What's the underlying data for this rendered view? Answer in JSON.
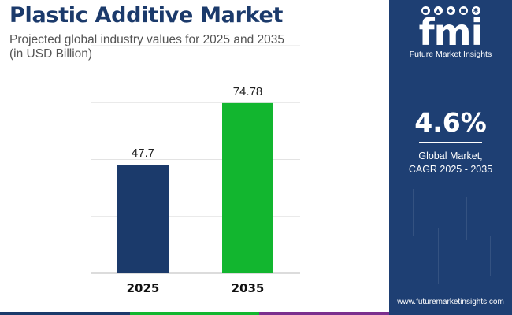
{
  "header": {
    "title": "Plastic Additive Market",
    "subtitle_line1": "Projected global industry values for 2025 and 2035",
    "subtitle_line2": "(in USD Billion)"
  },
  "chart_data": {
    "type": "bar",
    "categories": [
      "2025",
      "2035"
    ],
    "values": [
      47.7,
      74.78
    ],
    "value_labels": [
      "47.7",
      "74.78"
    ],
    "bar_colors": [
      "#1b3a6b",
      "#12b62f"
    ],
    "ylim": [
      0,
      100
    ],
    "y_gridlines": [
      0,
      25,
      50,
      75,
      100
    ],
    "grid": true,
    "y_axis_labels_shown": false
  },
  "side_panel": {
    "logo_word": "fmi",
    "logo_subtitle": "Future Market Insights",
    "cagr_value": "4.6%",
    "cagr_label_line1": "Global Market,",
    "cagr_label_line2": "CAGR 2025 - 2035",
    "website": "www.futuremarketinsights.com",
    "background_color": "#1e3f73"
  },
  "footer": {
    "stripe_colors": [
      "#1b3a6b",
      "#12b62f",
      "#7b2f8e"
    ]
  }
}
